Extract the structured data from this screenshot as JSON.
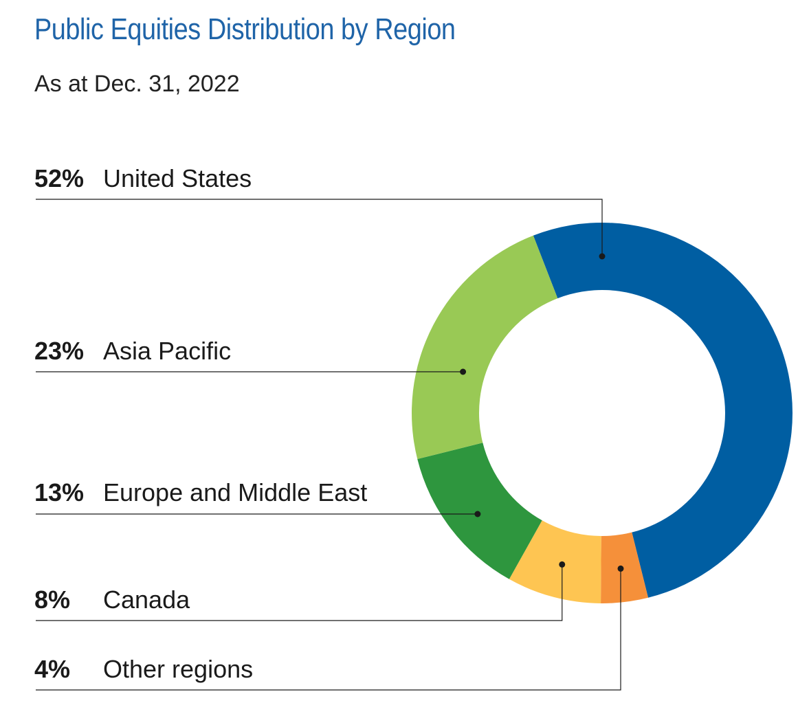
{
  "chart_data": {
    "type": "pie",
    "title": "Public Equities Distribution by Region",
    "subtitle": "As at Dec. 31, 2022",
    "slices": [
      {
        "label": "United States",
        "value": 52,
        "display": "52%",
        "color": "#005ea2"
      },
      {
        "label": "Other regions",
        "value": 4,
        "display": "4%",
        "color": "#f5903a"
      },
      {
        "label": "Canada",
        "value": 8,
        "display": "8%",
        "color": "#fec552"
      },
      {
        "label": "Europe and Middle East",
        "value": 13,
        "display": "13%",
        "color": "#2e963e"
      },
      {
        "label": "Asia Pacific",
        "value": 23,
        "display": "23%",
        "color": "#99c955"
      }
    ],
    "legend_order": [
      "United States",
      "Asia Pacific",
      "Europe and Middle East",
      "Canada",
      "Other regions"
    ]
  }
}
